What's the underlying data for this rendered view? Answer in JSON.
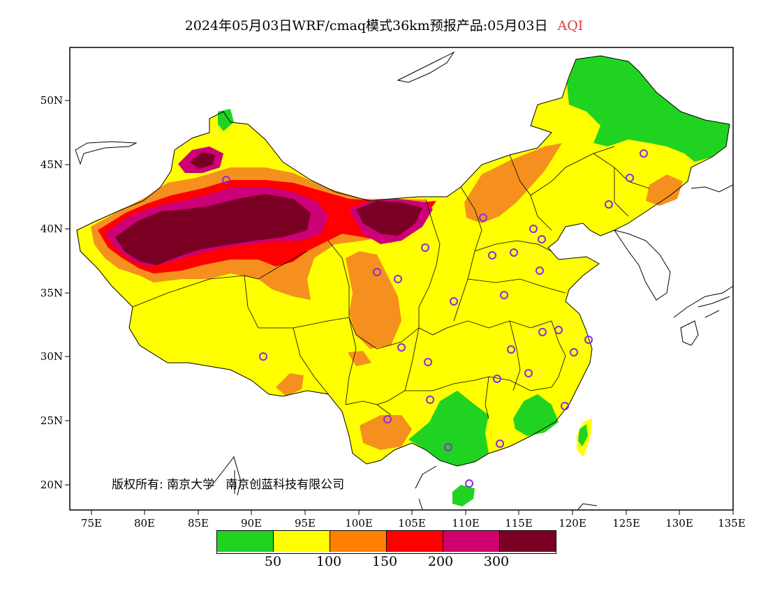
{
  "header": {
    "title": "2024年05月03日WRF/cmaq模式36km预报产品:05月03日",
    "variable": "AQI",
    "variable_color": "#e0393e"
  },
  "axes": {
    "lon_ticks": [
      "75E",
      "80E",
      "85E",
      "90E",
      "95E",
      "100E",
      "105E",
      "110E",
      "115E",
      "120E",
      "125E",
      "130E",
      "135E"
    ],
    "lat_ticks": [
      "50N",
      "45N",
      "40N",
      "35N",
      "30N",
      "25N",
      "20N"
    ]
  },
  "copyright": {
    "text1": "版权所有: 南京大学",
    "text2": "南京创蓝科技有限公司"
  },
  "legend": {
    "colors": [
      "#21d321",
      "#ffff00",
      "#ff8000",
      "#ff0000",
      "#d0006f",
      "#7a0023"
    ],
    "labels": [
      "50",
      "100",
      "150",
      "200",
      "300"
    ]
  },
  "colors": {
    "good": "#21d321",
    "moderate": "#ffff00",
    "sensitive": "#f5901e",
    "unhealthy": "#ff0000",
    "very_unhealthy": "#cc0077",
    "hazardous": "#7a0023",
    "station_ring": "#8a2be2"
  }
}
